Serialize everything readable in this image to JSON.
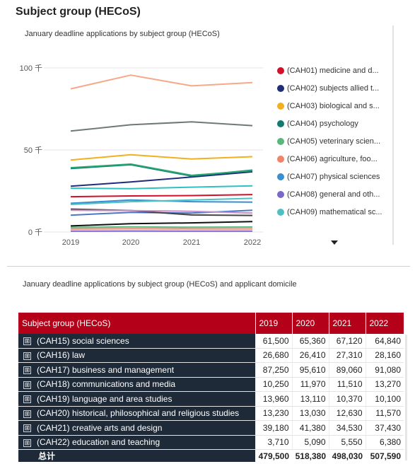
{
  "page": {
    "title": "Subject group (HECoS)"
  },
  "chart_data": {
    "type": "line",
    "title": "January deadline applications by subject group (HECoS)",
    "x": [
      "2019",
      "2020",
      "2021",
      "2022"
    ],
    "y_ticks": [
      {
        "value": 0,
        "label": "0 千"
      },
      {
        "value": 50000,
        "label": "50 千"
      },
      {
        "value": 100000,
        "label": "100 千"
      }
    ],
    "ylim": [
      0,
      100000
    ],
    "grid": true,
    "legend_position": "right",
    "series": [
      {
        "name": "(CAH01) medicine and d...",
        "color": "#d4102a",
        "values": [
          21500,
          22000,
          22200,
          22800
        ]
      },
      {
        "name": "(CAH02) subjects allied t...",
        "color": "#1f2d7a",
        "values": [
          27900,
          30500,
          33500,
          36700
        ]
      },
      {
        "name": "(CAH03) biological and s...",
        "color": "#f2b01e",
        "values": [
          43900,
          47100,
          44500,
          45900
        ]
      },
      {
        "name": "(CAH04) psychology",
        "color": "#137a72",
        "values": [
          38700,
          41000,
          34100,
          37700
        ]
      },
      {
        "name": "(CAH05) veterinary scien...",
        "color": "#58b87a",
        "values": [
          2800,
          3100,
          2900,
          3000
        ]
      },
      {
        "name": "(CAH06) agriculture, foo...",
        "color": "#f2836b",
        "values": [
          1800,
          2000,
          1900,
          1900
        ]
      },
      {
        "name": "(CAH07) physical sciences",
        "color": "#3a8fd1",
        "values": [
          17500,
          19500,
          18500,
          18200
        ]
      },
      {
        "name": "(CAH08) general and oth...",
        "color": "#7b68c9",
        "values": [
          500,
          600,
          500,
          500
        ]
      },
      {
        "name": "(CAH09) mathematical sc...",
        "color": "#4fc0c2",
        "values": [
          16800,
          18500,
          19500,
          20500
        ]
      },
      {
        "name": "(CAH15) social sciences",
        "color": "#707a74",
        "values": [
          61500,
          65360,
          67120,
          64840
        ]
      },
      {
        "name": "(CAH16) law",
        "color": "#2ec1c1",
        "values": [
          26680,
          26410,
          27310,
          28160
        ]
      },
      {
        "name": "(CAH17) business and management",
        "color": "#f5a88a",
        "values": [
          87250,
          95610,
          89060,
          91080
        ]
      },
      {
        "name": "(CAH18) communications and media",
        "color": "#4a78c4",
        "values": [
          10250,
          11970,
          11510,
          13270
        ]
      },
      {
        "name": "(CAH19) language and area studies",
        "color": "#444444",
        "values": [
          13960,
          13110,
          10370,
          10100
        ]
      },
      {
        "name": "(CAH20) historical, philosophical and religious studies",
        "color": "#c98fc4",
        "values": [
          13230,
          13030,
          12630,
          11570
        ]
      },
      {
        "name": "(CAH21) creative arts and design",
        "color": "#27a86f",
        "values": [
          39180,
          41380,
          34530,
          37430
        ]
      },
      {
        "name": "(CAH22) education and teaching",
        "color": "#111111",
        "values": [
          3710,
          5090,
          5550,
          6380
        ]
      }
    ]
  },
  "legend": {
    "visible_count": 9
  },
  "table": {
    "title": "January deadline applications by subject group (HECoS) and applicant domicile",
    "headers": [
      "Subject group (HECoS)",
      "2019",
      "2020",
      "2021",
      "2022"
    ],
    "rows": [
      {
        "label": "(CAH15) social sciences",
        "values": [
          "61,500",
          "65,360",
          "67,120",
          "64,840"
        ]
      },
      {
        "label": "(CAH16) law",
        "values": [
          "26,680",
          "26,410",
          "27,310",
          "28,160"
        ]
      },
      {
        "label": "(CAH17) business and management",
        "values": [
          "87,250",
          "95,610",
          "89,060",
          "91,080"
        ]
      },
      {
        "label": "(CAH18) communications and media",
        "values": [
          "10,250",
          "11,970",
          "11,510",
          "13,270"
        ]
      },
      {
        "label": "(CAH19) language and area studies",
        "values": [
          "13,960",
          "13,110",
          "10,370",
          "10,100"
        ]
      },
      {
        "label": "(CAH20) historical, philosophical and religious studies",
        "values": [
          "13,230",
          "13,030",
          "12,630",
          "11,570"
        ]
      },
      {
        "label": "(CAH21) creative arts and design",
        "values": [
          "39,180",
          "41,380",
          "34,530",
          "37,430"
        ]
      },
      {
        "label": "(CAH22) education and teaching",
        "values": [
          "3,710",
          "5,090",
          "5,550",
          "6,380"
        ]
      }
    ],
    "total": {
      "label": "总计",
      "values": [
        "479,500",
        "518,380",
        "498,030",
        "507,590"
      ]
    },
    "expand_glyph": "⊞"
  },
  "icons": {
    "expand": "plus-square-icon",
    "more": "caret-down-icon"
  },
  "colors": {
    "header_bg": "#b40018",
    "label_bg": "#1e2a38"
  }
}
